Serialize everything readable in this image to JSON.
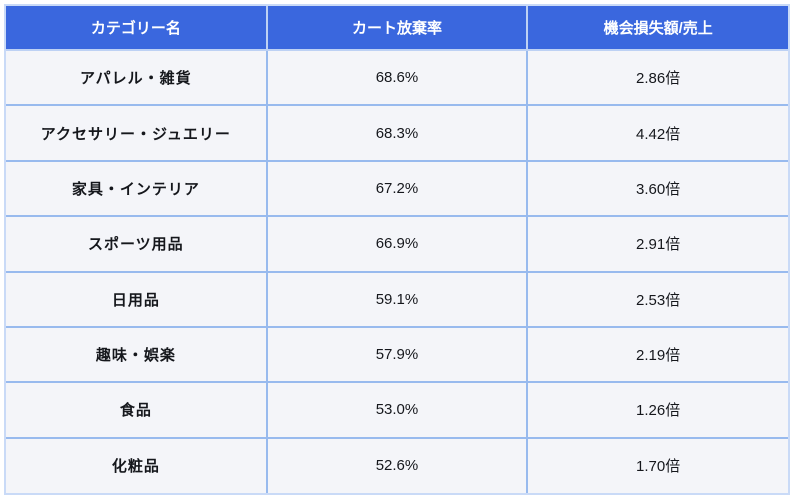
{
  "colors": {
    "header_bg": "#3a67de",
    "header_text": "#ffffff",
    "row_bg": "#f4f5f9",
    "cell_border": "#98baee",
    "header_border": "#bdd1f4",
    "outer_border": "#c9daf7",
    "body_text": "#15171c"
  },
  "table": {
    "columns": [
      {
        "label": "カテゴリー名"
      },
      {
        "label": "カート放棄率"
      },
      {
        "label": "機会損失額/売上"
      }
    ],
    "rows": [
      {
        "category": "アパレル・雑貨",
        "abandon_rate": "68.6%",
        "loss_ratio": "2.86倍"
      },
      {
        "category": "アクセサリー・ジュエリー",
        "abandon_rate": "68.3%",
        "loss_ratio": "4.42倍"
      },
      {
        "category": "家具・インテリア",
        "abandon_rate": "67.2%",
        "loss_ratio": "3.60倍"
      },
      {
        "category": "スポーツ用品",
        "abandon_rate": "66.9%",
        "loss_ratio": "2.91倍"
      },
      {
        "category": "日用品",
        "abandon_rate": "59.1%",
        "loss_ratio": "2.53倍"
      },
      {
        "category": "趣味・娯楽",
        "abandon_rate": "57.9%",
        "loss_ratio": "2.19倍"
      },
      {
        "category": "食品",
        "abandon_rate": "53.0%",
        "loss_ratio": "1.26倍"
      },
      {
        "category": "化粧品",
        "abandon_rate": "52.6%",
        "loss_ratio": "1.70倍"
      }
    ]
  },
  "chart_data": {
    "type": "table",
    "title": "",
    "columns": [
      "カテゴリー名",
      "カート放棄率",
      "機会損失額/売上"
    ],
    "categories": [
      "アパレル・雑貨",
      "アクセサリー・ジュエリー",
      "家具・インテリア",
      "スポーツ用品",
      "日用品",
      "趣味・娯楽",
      "食品",
      "化粧品"
    ],
    "series": [
      {
        "name": "カート放棄率",
        "unit": "%",
        "values": [
          68.6,
          68.3,
          67.2,
          66.9,
          59.1,
          57.9,
          53.0,
          52.6
        ]
      },
      {
        "name": "機会損失額/売上",
        "unit": "倍",
        "values": [
          2.86,
          4.42,
          3.6,
          2.91,
          2.53,
          2.19,
          1.26,
          1.7
        ]
      }
    ],
    "layout": {
      "grid": true,
      "legend": "none",
      "sort": "abandon_rate descending"
    }
  }
}
